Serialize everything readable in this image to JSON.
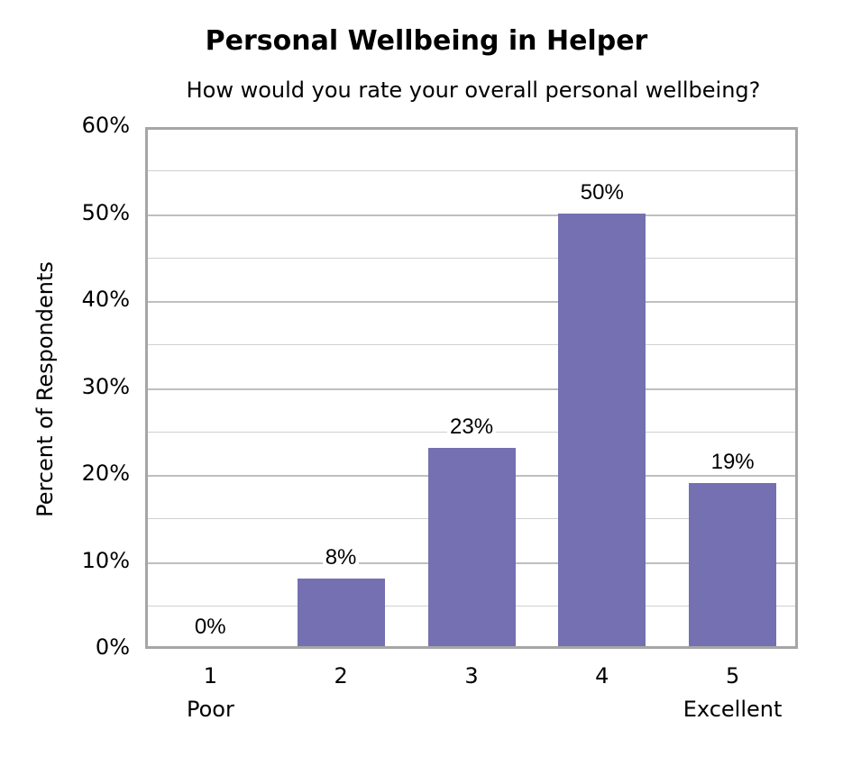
{
  "chart_data": {
    "type": "bar",
    "title": "Personal Wellbeing in Helper",
    "subtitle": "How would you rate your overall personal wellbeing?",
    "xlabel": "",
    "ylabel": "Percent of Respondents",
    "categories": [
      "1",
      "2",
      "3",
      "4",
      "5"
    ],
    "category_sublabels": [
      "Poor",
      "",
      "",
      "",
      "Excellent"
    ],
    "values": [
      0,
      8,
      23,
      50,
      19
    ],
    "value_labels": [
      "0%",
      "8%",
      "23%",
      "50%",
      "19%"
    ],
    "ylim": [
      0,
      60
    ],
    "yticks": [
      "0%",
      "10%",
      "20%",
      "30%",
      "40%",
      "50%",
      "60%"
    ],
    "grid": true,
    "legend": "none",
    "bar_color": "#7470b1"
  }
}
